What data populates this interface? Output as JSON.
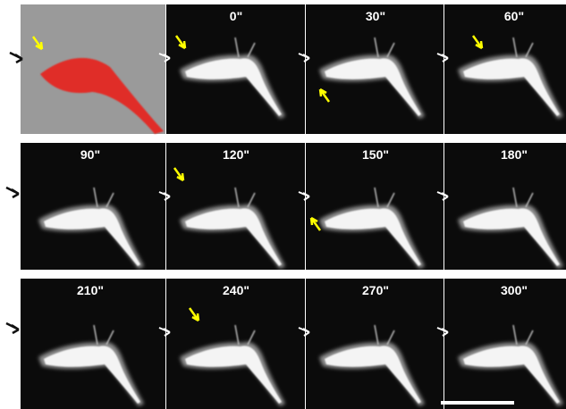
{
  "panel_labels": [
    "0\"",
    "30\"",
    "60\"",
    "90\"",
    "120\"",
    "150\"",
    "180\"",
    "210\"",
    "240\"",
    "270\"",
    "300\""
  ]
}
